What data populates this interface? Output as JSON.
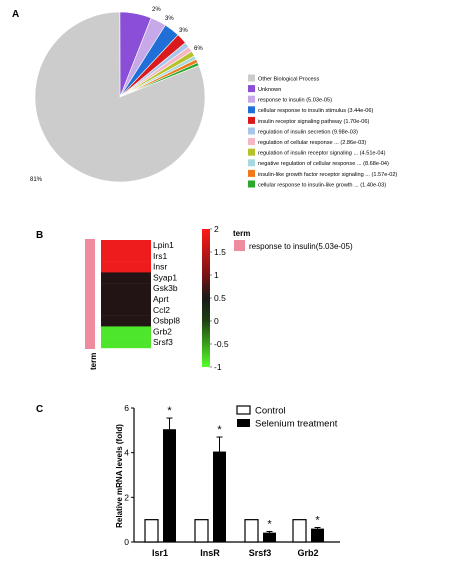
{
  "chart_data": [
    {
      "panel": "A",
      "type": "pie",
      "slice_labels": [
        "81%",
        "6%",
        "3%",
        "3%",
        "2%"
      ],
      "legend_placement": "right",
      "slices": [
        {
          "name": "Other Biological Process",
          "value": 81,
          "color": "#cccccc"
        },
        {
          "name": "Unknown",
          "value": 6,
          "color": "#8a4fd6"
        },
        {
          "name": "response to insulin (5.03e-05)",
          "value": 3,
          "color": "#c7a8e8"
        },
        {
          "name": "cellular response to insulin stimulus (3.44e-06)",
          "value": 3,
          "color": "#1f6fd6"
        },
        {
          "name": "insulin receptor signaling pathway (1.70e-06)",
          "value": 2,
          "color": "#d9191b"
        },
        {
          "name": "regulation of insulin secretion (9.98e-03)",
          "value": 1,
          "color": "#a9c6ea"
        },
        {
          "name": "regulation of cellular response ... (2.86e-03)",
          "value": 1,
          "color": "#f6b7c4"
        },
        {
          "name": "regulation of insulin receptor signaling ... (4.51e-04)",
          "value": 1,
          "color": "#b5c22a"
        },
        {
          "name": "negative regulation of cellular response ... (8.68e-04)",
          "value": 0.7,
          "color": "#a8d9e0"
        },
        {
          "name": "insulin-like growth factor receptor signaling ... (1.57e-02)",
          "value": 0.7,
          "color": "#f07a1a"
        },
        {
          "name": "cellular response to insulin-like growth ... (1.40e-03)",
          "value": 0.6,
          "color": "#2aa82a"
        }
      ]
    },
    {
      "panel": "B",
      "type": "heatmap",
      "genes": [
        "Lpin1",
        "Irs1",
        "Insr",
        "Syap1",
        "Gsk3b",
        "Aprt",
        "Ccl2",
        "Osbpl8",
        "Grb2",
        "Srsf3"
      ],
      "values": [
        1.8,
        1.8,
        1.8,
        0.1,
        0.1,
        0.1,
        0.1,
        0.1,
        -0.8,
        -0.8
      ],
      "colorbar_ticks": [
        "2",
        "1.5",
        "1",
        "0.5",
        "0",
        "-0.5",
        "-1"
      ],
      "colorbar_range": [
        -1,
        2
      ],
      "side_label": "term",
      "legend_title": "term",
      "legend_entry": "response to insulin(5.03e-05)",
      "term_color": "#f08a9e"
    },
    {
      "panel": "C",
      "type": "bar",
      "ylabel": "Relative mRNA levels (fold)",
      "ylim": [
        0,
        6
      ],
      "yticks": [
        "0",
        "2",
        "4",
        "6"
      ],
      "categories": [
        "Isr1",
        "InsR",
        "Srsf3",
        "Grb2"
      ],
      "series": [
        {
          "name": "Control",
          "values": [
            1,
            1,
            1,
            1
          ],
          "errors": [
            0,
            0,
            0,
            0
          ]
        },
        {
          "name": "Selenium treatment",
          "values": [
            5.05,
            4.05,
            0.42,
            0.6
          ],
          "errors": [
            0.5,
            0.65,
            0.05,
            0.05
          ]
        }
      ],
      "significance": [
        "*",
        "*",
        "*",
        "*"
      ]
    }
  ],
  "panel_letters": [
    "A",
    "B",
    "C"
  ]
}
